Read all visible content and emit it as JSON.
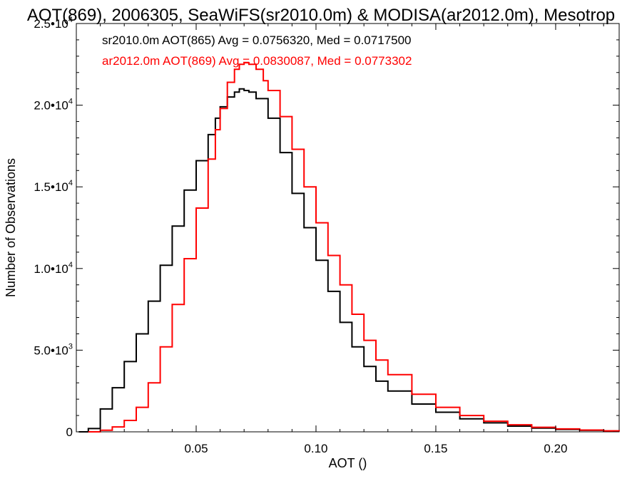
{
  "chart_data": {
    "type": "line",
    "title": "AOT(869), 2006305, SeaWiFS(sr2010.0m) & MODISA(ar2012.0m), Mesotrop",
    "xlabel": "AOT ()",
    "ylabel": "Number of Observations",
    "xlim": [
      0.0,
      0.2265
    ],
    "ylim": [
      0,
      25000
    ],
    "grid": false,
    "legend_position": "top-left",
    "x_ticks": [
      0.05,
      0.1,
      0.15,
      0.2
    ],
    "x_tick_labels": [
      "0.05",
      "0.10",
      "0.15",
      "0.20"
    ],
    "y_ticks": [
      0,
      5000,
      10000,
      15000,
      20000,
      25000
    ],
    "y_tick_labels": [
      {
        "base": "0",
        "exp": ""
      },
      {
        "base": "5.0•10",
        "exp": "3"
      },
      {
        "base": "1.0•10",
        "exp": "4"
      },
      {
        "base": "1.5•10",
        "exp": "4"
      },
      {
        "base": "2.0•10",
        "exp": "4"
      },
      {
        "base": "2.5•10",
        "exp": "4"
      }
    ],
    "series": [
      {
        "name": "sr2010.0m AOT(865)",
        "legend": "sr2010.0m AOT(865) Avg = 0.0756320, Med = 0.0717500",
        "color": "#000000",
        "x": [
          0.001,
          0.005,
          0.01,
          0.015,
          0.02,
          0.025,
          0.03,
          0.035,
          0.04,
          0.045,
          0.05,
          0.055,
          0.058,
          0.06,
          0.063,
          0.066,
          0.068,
          0.07,
          0.072,
          0.075,
          0.08,
          0.085,
          0.09,
          0.095,
          0.1,
          0.105,
          0.11,
          0.115,
          0.12,
          0.125,
          0.13,
          0.14,
          0.15,
          0.16,
          0.17,
          0.18,
          0.19,
          0.2,
          0.21,
          0.22,
          0.2265
        ],
        "y": [
          0,
          200,
          1400,
          2700,
          4300,
          6000,
          8000,
          10200,
          12600,
          14800,
          16600,
          18200,
          19200,
          19900,
          20500,
          20800,
          21000,
          20900,
          20800,
          20400,
          19200,
          17100,
          14600,
          12500,
          10500,
          8600,
          6700,
          5200,
          4000,
          3100,
          2500,
          1700,
          1200,
          800,
          550,
          350,
          230,
          150,
          90,
          50,
          30
        ]
      },
      {
        "name": "ar2012.0m AOT(869)",
        "legend": "ar2012.0m AOT(869) Avg = 0.0830087, Med = 0.0773302",
        "color": "#ff0000",
        "x": [
          0.005,
          0.01,
          0.015,
          0.02,
          0.025,
          0.03,
          0.035,
          0.04,
          0.045,
          0.05,
          0.055,
          0.058,
          0.06,
          0.063,
          0.066,
          0.068,
          0.07,
          0.072,
          0.075,
          0.078,
          0.08,
          0.085,
          0.09,
          0.095,
          0.1,
          0.105,
          0.11,
          0.115,
          0.12,
          0.125,
          0.13,
          0.14,
          0.15,
          0.16,
          0.17,
          0.18,
          0.19,
          0.2,
          0.21,
          0.22,
          0.2265
        ],
        "y": [
          0,
          100,
          300,
          700,
          1500,
          3000,
          5200,
          7800,
          10600,
          13700,
          16700,
          18500,
          19800,
          21400,
          22200,
          22500,
          22600,
          22500,
          22200,
          21500,
          20900,
          19300,
          17300,
          15000,
          12800,
          10800,
          9000,
          7200,
          5600,
          4400,
          3500,
          2300,
          1500,
          1000,
          650,
          430,
          280,
          180,
          110,
          60,
          30
        ]
      }
    ]
  }
}
